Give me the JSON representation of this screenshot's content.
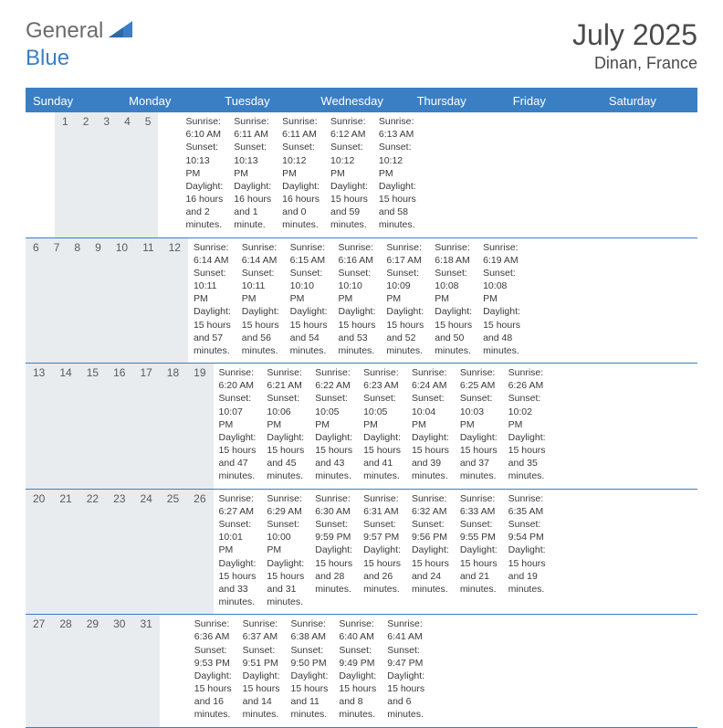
{
  "brand": {
    "part1": "General",
    "part2": "Blue"
  },
  "title": "July 2025",
  "location": "Dinan, France",
  "colors": {
    "accent": "#3a7fc4",
    "daynum_bg": "#e8ecef",
    "text": "#3a3a3a",
    "bg": "#ffffff"
  },
  "dayHeaders": [
    "Sunday",
    "Monday",
    "Tuesday",
    "Wednesday",
    "Thursday",
    "Friday",
    "Saturday"
  ],
  "weeks": [
    [
      {
        "n": "",
        "sunrise": "",
        "sunset": "",
        "daylight": ""
      },
      {
        "n": "",
        "sunrise": "",
        "sunset": "",
        "daylight": ""
      },
      {
        "n": "1",
        "sunrise": "Sunrise: 6:10 AM",
        "sunset": "Sunset: 10:13 PM",
        "daylight": "Daylight: 16 hours and 2 minutes."
      },
      {
        "n": "2",
        "sunrise": "Sunrise: 6:11 AM",
        "sunset": "Sunset: 10:13 PM",
        "daylight": "Daylight: 16 hours and 1 minute."
      },
      {
        "n": "3",
        "sunrise": "Sunrise: 6:11 AM",
        "sunset": "Sunset: 10:12 PM",
        "daylight": "Daylight: 16 hours and 0 minutes."
      },
      {
        "n": "4",
        "sunrise": "Sunrise: 6:12 AM",
        "sunset": "Sunset: 10:12 PM",
        "daylight": "Daylight: 15 hours and 59 minutes."
      },
      {
        "n": "5",
        "sunrise": "Sunrise: 6:13 AM",
        "sunset": "Sunset: 10:12 PM",
        "daylight": "Daylight: 15 hours and 58 minutes."
      }
    ],
    [
      {
        "n": "6",
        "sunrise": "Sunrise: 6:14 AM",
        "sunset": "Sunset: 10:11 PM",
        "daylight": "Daylight: 15 hours and 57 minutes."
      },
      {
        "n": "7",
        "sunrise": "Sunrise: 6:14 AM",
        "sunset": "Sunset: 10:11 PM",
        "daylight": "Daylight: 15 hours and 56 minutes."
      },
      {
        "n": "8",
        "sunrise": "Sunrise: 6:15 AM",
        "sunset": "Sunset: 10:10 PM",
        "daylight": "Daylight: 15 hours and 54 minutes."
      },
      {
        "n": "9",
        "sunrise": "Sunrise: 6:16 AM",
        "sunset": "Sunset: 10:10 PM",
        "daylight": "Daylight: 15 hours and 53 minutes."
      },
      {
        "n": "10",
        "sunrise": "Sunrise: 6:17 AM",
        "sunset": "Sunset: 10:09 PM",
        "daylight": "Daylight: 15 hours and 52 minutes."
      },
      {
        "n": "11",
        "sunrise": "Sunrise: 6:18 AM",
        "sunset": "Sunset: 10:08 PM",
        "daylight": "Daylight: 15 hours and 50 minutes."
      },
      {
        "n": "12",
        "sunrise": "Sunrise: 6:19 AM",
        "sunset": "Sunset: 10:08 PM",
        "daylight": "Daylight: 15 hours and 48 minutes."
      }
    ],
    [
      {
        "n": "13",
        "sunrise": "Sunrise: 6:20 AM",
        "sunset": "Sunset: 10:07 PM",
        "daylight": "Daylight: 15 hours and 47 minutes."
      },
      {
        "n": "14",
        "sunrise": "Sunrise: 6:21 AM",
        "sunset": "Sunset: 10:06 PM",
        "daylight": "Daylight: 15 hours and 45 minutes."
      },
      {
        "n": "15",
        "sunrise": "Sunrise: 6:22 AM",
        "sunset": "Sunset: 10:05 PM",
        "daylight": "Daylight: 15 hours and 43 minutes."
      },
      {
        "n": "16",
        "sunrise": "Sunrise: 6:23 AM",
        "sunset": "Sunset: 10:05 PM",
        "daylight": "Daylight: 15 hours and 41 minutes."
      },
      {
        "n": "17",
        "sunrise": "Sunrise: 6:24 AM",
        "sunset": "Sunset: 10:04 PM",
        "daylight": "Daylight: 15 hours and 39 minutes."
      },
      {
        "n": "18",
        "sunrise": "Sunrise: 6:25 AM",
        "sunset": "Sunset: 10:03 PM",
        "daylight": "Daylight: 15 hours and 37 minutes."
      },
      {
        "n": "19",
        "sunrise": "Sunrise: 6:26 AM",
        "sunset": "Sunset: 10:02 PM",
        "daylight": "Daylight: 15 hours and 35 minutes."
      }
    ],
    [
      {
        "n": "20",
        "sunrise": "Sunrise: 6:27 AM",
        "sunset": "Sunset: 10:01 PM",
        "daylight": "Daylight: 15 hours and 33 minutes."
      },
      {
        "n": "21",
        "sunrise": "Sunrise: 6:29 AM",
        "sunset": "Sunset: 10:00 PM",
        "daylight": "Daylight: 15 hours and 31 minutes."
      },
      {
        "n": "22",
        "sunrise": "Sunrise: 6:30 AM",
        "sunset": "Sunset: 9:59 PM",
        "daylight": "Daylight: 15 hours and 28 minutes."
      },
      {
        "n": "23",
        "sunrise": "Sunrise: 6:31 AM",
        "sunset": "Sunset: 9:57 PM",
        "daylight": "Daylight: 15 hours and 26 minutes."
      },
      {
        "n": "24",
        "sunrise": "Sunrise: 6:32 AM",
        "sunset": "Sunset: 9:56 PM",
        "daylight": "Daylight: 15 hours and 24 minutes."
      },
      {
        "n": "25",
        "sunrise": "Sunrise: 6:33 AM",
        "sunset": "Sunset: 9:55 PM",
        "daylight": "Daylight: 15 hours and 21 minutes."
      },
      {
        "n": "26",
        "sunrise": "Sunrise: 6:35 AM",
        "sunset": "Sunset: 9:54 PM",
        "daylight": "Daylight: 15 hours and 19 minutes."
      }
    ],
    [
      {
        "n": "27",
        "sunrise": "Sunrise: 6:36 AM",
        "sunset": "Sunset: 9:53 PM",
        "daylight": "Daylight: 15 hours and 16 minutes."
      },
      {
        "n": "28",
        "sunrise": "Sunrise: 6:37 AM",
        "sunset": "Sunset: 9:51 PM",
        "daylight": "Daylight: 15 hours and 14 minutes."
      },
      {
        "n": "29",
        "sunrise": "Sunrise: 6:38 AM",
        "sunset": "Sunset: 9:50 PM",
        "daylight": "Daylight: 15 hours and 11 minutes."
      },
      {
        "n": "30",
        "sunrise": "Sunrise: 6:40 AM",
        "sunset": "Sunset: 9:49 PM",
        "daylight": "Daylight: 15 hours and 8 minutes."
      },
      {
        "n": "31",
        "sunrise": "Sunrise: 6:41 AM",
        "sunset": "Sunset: 9:47 PM",
        "daylight": "Daylight: 15 hours and 6 minutes."
      },
      {
        "n": "",
        "sunrise": "",
        "sunset": "",
        "daylight": ""
      },
      {
        "n": "",
        "sunrise": "",
        "sunset": "",
        "daylight": ""
      }
    ]
  ]
}
